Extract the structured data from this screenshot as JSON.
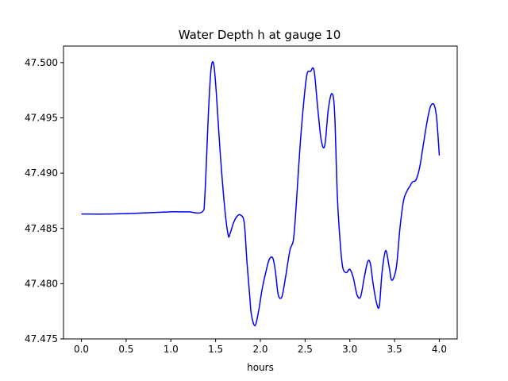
{
  "chart_data": {
    "type": "line",
    "title": "Water Depth h at gauge 10",
    "xlabel": "hours",
    "ylabel": "",
    "xlim": [
      -0.2,
      4.2
    ],
    "ylim": [
      47.475,
      47.5015
    ],
    "x_ticks": [
      0.0,
      0.5,
      1.0,
      1.5,
      2.0,
      2.5,
      3.0,
      3.5,
      4.0
    ],
    "x_tick_labels": [
      "0.0",
      "0.5",
      "1.0",
      "1.5",
      "2.0",
      "2.5",
      "3.0",
      "3.5",
      "4.0"
    ],
    "y_ticks": [
      47.475,
      47.48,
      47.485,
      47.49,
      47.495,
      47.5
    ],
    "y_tick_labels": [
      "47.475",
      "47.480",
      "47.485",
      "47.490",
      "47.495",
      "47.500"
    ],
    "grid": false,
    "legend": "none",
    "series": [
      {
        "color": "#0000ff",
        "x": [
          0.0,
          0.3,
          0.7,
          1.0,
          1.1,
          1.2,
          1.35,
          1.38,
          1.42,
          1.45,
          1.48,
          1.51,
          1.55,
          1.6,
          1.64,
          1.66,
          1.7,
          1.74,
          1.78,
          1.82,
          1.85,
          1.88,
          1.9,
          1.94,
          1.98,
          2.02,
          2.06,
          2.1,
          2.14,
          2.17,
          2.2,
          2.24,
          2.28,
          2.33,
          2.37,
          2.4,
          2.44,
          2.48,
          2.52,
          2.56,
          2.6,
          2.64,
          2.68,
          2.72,
          2.76,
          2.8,
          2.83,
          2.86,
          2.89,
          2.92,
          2.96,
          3.0,
          3.04,
          3.08,
          3.12,
          3.16,
          3.2,
          3.23,
          3.26,
          3.3,
          3.33,
          3.36,
          3.4,
          3.44,
          3.47,
          3.52,
          3.56,
          3.6,
          3.64,
          3.67,
          3.7,
          3.74,
          3.78,
          3.82,
          3.86,
          3.9,
          3.94,
          3.97,
          4.0
        ],
        "y": [
          47.4863,
          47.4863,
          47.4864,
          47.4865,
          47.4865,
          47.4865,
          47.4865,
          47.488,
          47.4955,
          47.4995,
          47.4998,
          47.497,
          47.492,
          47.487,
          47.4844,
          47.4845,
          47.4855,
          47.4861,
          47.4862,
          47.4855,
          47.482,
          47.479,
          47.4772,
          47.4762,
          47.4775,
          47.4795,
          47.481,
          47.4822,
          47.4823,
          47.481,
          47.479,
          47.4788,
          47.4805,
          47.483,
          47.484,
          47.487,
          47.492,
          47.496,
          47.4989,
          47.4992,
          47.4993,
          47.496,
          47.493,
          47.4925,
          47.4958,
          47.4972,
          47.4955,
          47.488,
          47.484,
          47.4815,
          47.481,
          47.4813,
          47.4805,
          47.479,
          47.4788,
          47.4805,
          47.482,
          47.4818,
          47.48,
          47.4782,
          47.478,
          47.481,
          47.483,
          47.4815,
          47.4803,
          47.4815,
          47.485,
          47.4875,
          47.4884,
          47.4888,
          47.4892,
          47.4894,
          47.4905,
          47.4925,
          47.4945,
          47.496,
          47.4962,
          47.495,
          47.4916
        ]
      }
    ]
  }
}
